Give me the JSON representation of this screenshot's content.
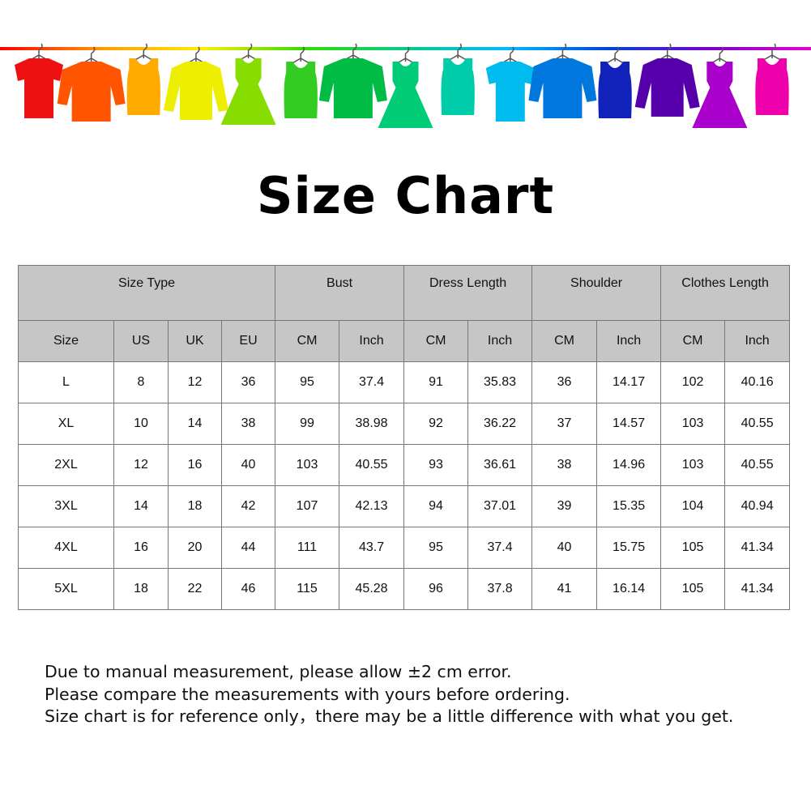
{
  "banner": {
    "line_gradient": [
      "#ff0000",
      "#ff9900",
      "#ffee00",
      "#33dd00",
      "#00cc88",
      "#00bbff",
      "#0044dd",
      "#7700cc",
      "#ee00cc"
    ],
    "items": [
      {
        "icon": "tshirt-icon",
        "color": "#ee1111"
      },
      {
        "icon": "shirt-icon",
        "color": "#ff5500"
      },
      {
        "icon": "tank-top-icon",
        "color": "#ffaa00"
      },
      {
        "icon": "sweater-icon",
        "color": "#eeee00"
      },
      {
        "icon": "dress-icon",
        "color": "#88dd00"
      },
      {
        "icon": "tank-top-icon",
        "color": "#33cc22"
      },
      {
        "icon": "shirt-icon",
        "color": "#00bb44"
      },
      {
        "icon": "dress-icon",
        "color": "#00cc77"
      },
      {
        "icon": "tank-top-icon",
        "color": "#00ccaa"
      },
      {
        "icon": "tshirt-icon",
        "color": "#00bbee"
      },
      {
        "icon": "shirt-icon",
        "color": "#0077dd"
      },
      {
        "icon": "tank-top-icon",
        "color": "#1122bb"
      },
      {
        "icon": "sweater-icon",
        "color": "#5500aa"
      },
      {
        "icon": "dress-icon",
        "color": "#aa00cc"
      },
      {
        "icon": "tank-top-icon",
        "color": "#ee00aa"
      }
    ]
  },
  "title": "Size Chart",
  "table": {
    "group_headers": [
      "Size Type",
      "Bust",
      "Dress Length",
      "Shoulder",
      "Clothes Length"
    ],
    "sub_headers": [
      "Size",
      "US",
      "UK",
      "EU",
      "CM",
      "Inch",
      "CM",
      "Inch",
      "CM",
      "Inch",
      "CM",
      "Inch"
    ],
    "rows": [
      [
        "L",
        "8",
        "12",
        "36",
        "95",
        "37.4",
        "91",
        "35.83",
        "36",
        "14.17",
        "102",
        "40.16"
      ],
      [
        "XL",
        "10",
        "14",
        "38",
        "99",
        "38.98",
        "92",
        "36.22",
        "37",
        "14.57",
        "103",
        "40.55"
      ],
      [
        "2XL",
        "12",
        "16",
        "40",
        "103",
        "40.55",
        "93",
        "36.61",
        "38",
        "14.96",
        "103",
        "40.55"
      ],
      [
        "3XL",
        "14",
        "18",
        "42",
        "107",
        "42.13",
        "94",
        "37.01",
        "39",
        "15.35",
        "104",
        "40.94"
      ],
      [
        "4XL",
        "16",
        "20",
        "44",
        "111",
        "43.7",
        "95",
        "37.4",
        "40",
        "15.75",
        "105",
        "41.34"
      ],
      [
        "5XL",
        "18",
        "22",
        "46",
        "115",
        "45.28",
        "96",
        "37.8",
        "41",
        "16.14",
        "105",
        "41.34"
      ]
    ]
  },
  "notes": [
    "Due to manual measurement, please allow ±2 cm error.",
    "Please compare the measurements with yours before ordering.",
    "Size chart is for reference only，there may be a little difference with what you get."
  ]
}
